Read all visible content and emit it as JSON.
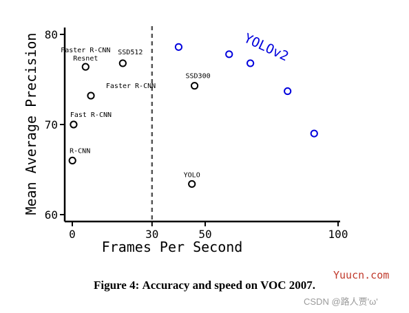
{
  "chart_data": {
    "type": "scatter",
    "xlabel": "Frames Per Second",
    "ylabel": "Mean Average Precision",
    "xlim": [
      0,
      100
    ],
    "ylim": [
      60,
      80
    ],
    "x_ticks": [
      "0",
      "30",
      "50",
      "100"
    ],
    "y_ticks": [
      "60",
      "70",
      "80"
    ],
    "divider": {
      "x": 30,
      "style": "dashed"
    },
    "series": [
      {
        "name": "YOLOv2",
        "color": "#0000dd",
        "points": [
          {
            "x": 40,
            "y": 78.6
          },
          {
            "x": 59,
            "y": 77.8
          },
          {
            "x": 67,
            "y": 76.8
          },
          {
            "x": 81,
            "y": 73.7
          },
          {
            "x": 91,
            "y": 69.0
          }
        ]
      },
      {
        "color": "#000000",
        "points": [
          {
            "x": 5,
            "y": 76.4,
            "label": "Faster R-CNN Resnet"
          },
          {
            "x": 19,
            "y": 76.8,
            "label": "SSD512"
          },
          {
            "x": 7,
            "y": 73.2,
            "label": "Faster R-CNN"
          },
          {
            "x": 46,
            "y": 74.3,
            "label": "SSD300"
          },
          {
            "x": 0.5,
            "y": 70.0,
            "label": "Fast R-CNN"
          },
          {
            "x": 0.05,
            "y": 66.0,
            "label": "R-CNN"
          },
          {
            "x": 45,
            "y": 63.4,
            "label": "YOLO"
          }
        ]
      }
    ]
  },
  "caption": {
    "prefix": "Figure 4:",
    "text": "Accuracy and speed on VOC 2007."
  },
  "watermarks": [
    "Yuucn.com",
    "CSDN @路人贾'ω'"
  ]
}
